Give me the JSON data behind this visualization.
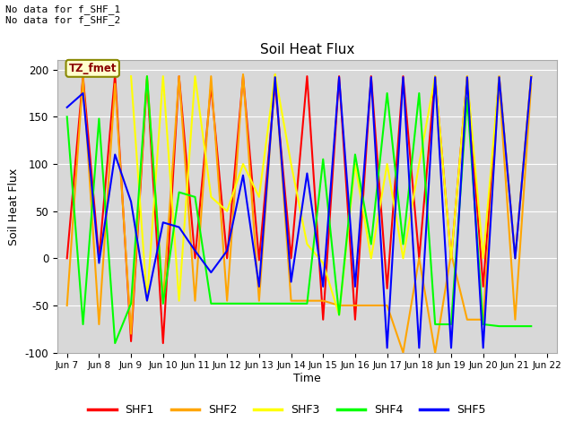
{
  "title": "Soil Heat Flux",
  "ylabel": "Soil Heat Flux",
  "xlabel": "Time",
  "ylim": [
    -100,
    210
  ],
  "yticks": [
    -100,
    -50,
    0,
    50,
    100,
    150,
    200
  ],
  "annotation_text": "No data for f_SHF_1\nNo data for f_SHF_2",
  "tz_label": "TZ_fmet",
  "x_tick_labels": [
    "Jun 7",
    "Jun 8",
    "Jun 9",
    "Jun 10",
    "Jun 11",
    "Jun 12",
    "Jun 13",
    "Jun 14",
    "Jun 15",
    "Jun 16",
    "Jun 17",
    "Jun 18",
    "Jun 19",
    "Jun 20",
    "Jun 21",
    "Jun 22"
  ],
  "series": {
    "SHF1": {
      "color": "red",
      "x": [
        7,
        7.5,
        8,
        8.5,
        9,
        9.5,
        10,
        10.5,
        11,
        11.5,
        12,
        12.5,
        13,
        13.5,
        14,
        14.5,
        15,
        15.5,
        16,
        16.5,
        17,
        17.5,
        18,
        18.5,
        19,
        19.5,
        20,
        20.5,
        21,
        21.5
      ],
      "y": [
        0,
        193,
        0,
        195,
        -88,
        190,
        -90,
        193,
        0,
        183,
        0,
        193,
        -2,
        185,
        0,
        193,
        -65,
        193,
        -65,
        193,
        -32,
        193,
        0,
        193,
        0,
        193,
        -30,
        193,
        0,
        193
      ]
    },
    "SHF2": {
      "color": "orange",
      "x": [
        7,
        7.5,
        8,
        8.5,
        9,
        9.5,
        10,
        10.5,
        11,
        11.5,
        12,
        12.5,
        13,
        13.5,
        14,
        14.5,
        15,
        15.5,
        16,
        16.5,
        17,
        17.5,
        18,
        18.5,
        19,
        19.5,
        20,
        20.5,
        21,
        21.5
      ],
      "y": [
        -50,
        192,
        -70,
        185,
        -80,
        193,
        -45,
        193,
        -45,
        193,
        -45,
        195,
        -45,
        195,
        -45,
        -45,
        -45,
        -50,
        -50,
        -50,
        -50,
        -100,
        0,
        -100,
        5,
        -65,
        -65,
        185,
        -65,
        185
      ]
    },
    "SHF3": {
      "color": "yellow",
      "x": [
        9,
        9.5,
        10,
        10.5,
        11,
        11.5,
        12,
        12.5,
        13,
        13.5,
        14,
        14.5,
        15,
        15.5,
        16,
        16.5,
        17,
        17.5,
        18,
        18.5,
        19,
        19.5,
        20,
        20.5,
        21,
        21.5
      ],
      "y": [
        193,
        -45,
        193,
        -45,
        193,
        65,
        50,
        100,
        65,
        195,
        100,
        15,
        -5,
        -60,
        100,
        0,
        100,
        0,
        100,
        193,
        0,
        193,
        0,
        193,
        0,
        193
      ]
    },
    "SHF4": {
      "color": "lime",
      "x": [
        7,
        7.5,
        8,
        8.5,
        9,
        9.5,
        10,
        10.5,
        11,
        11.5,
        12,
        12.5,
        13,
        13.5,
        14,
        14.5,
        15,
        15.5,
        16,
        16.5,
        17,
        17.5,
        18,
        18.5,
        19,
        19.5,
        20,
        20.5,
        21,
        21.5
      ],
      "y": [
        150,
        -70,
        148,
        -90,
        -48,
        193,
        -48,
        70,
        65,
        -48,
        -48,
        -48,
        -48,
        -48,
        -48,
        -48,
        105,
        -60,
        110,
        15,
        175,
        15,
        175,
        -70,
        -70,
        170,
        -70,
        -72,
        -72,
        -72
      ]
    },
    "SHF5": {
      "color": "blue",
      "x": [
        7,
        7.5,
        8,
        8.5,
        9,
        9.5,
        10,
        10.5,
        11,
        11.5,
        12,
        12.5,
        13,
        13.5,
        14,
        14.5,
        15,
        15.5,
        16,
        16.5,
        17,
        17.5,
        18,
        18.5,
        19,
        19.5,
        20,
        20.5,
        21,
        21.5
      ],
      "y": [
        160,
        175,
        -5,
        110,
        60,
        -45,
        38,
        33,
        8,
        -15,
        8,
        88,
        -30,
        192,
        -25,
        90,
        -30,
        192,
        -30,
        192,
        -95,
        192,
        -95,
        192,
        -95,
        192,
        -95,
        192,
        0,
        192
      ]
    }
  }
}
